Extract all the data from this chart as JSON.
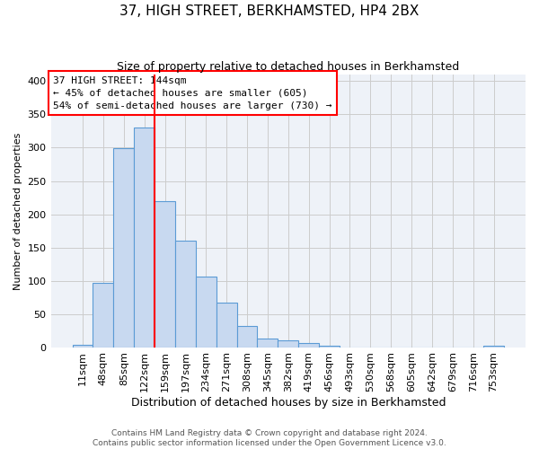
{
  "title": "37, HIGH STREET, BERKHAMSTED, HP4 2BX",
  "subtitle": "Size of property relative to detached houses in Berkhamsted",
  "xlabel": "Distribution of detached houses by size in Berkhamsted",
  "ylabel": "Number of detached properties",
  "footer_line1": "Contains HM Land Registry data © Crown copyright and database right 2024.",
  "footer_line2": "Contains public sector information licensed under the Open Government Licence v3.0.",
  "bar_labels": [
    "11sqm",
    "48sqm",
    "85sqm",
    "122sqm",
    "159sqm",
    "197sqm",
    "234sqm",
    "271sqm",
    "308sqm",
    "345sqm",
    "382sqm",
    "419sqm",
    "456sqm",
    "493sqm",
    "530sqm",
    "568sqm",
    "605sqm",
    "642sqm",
    "679sqm",
    "716sqm",
    "753sqm"
  ],
  "bar_values": [
    4,
    97,
    299,
    330,
    220,
    160,
    106,
    67,
    32,
    13,
    10,
    6,
    2,
    0,
    0,
    0,
    0,
    0,
    0,
    0,
    2
  ],
  "bar_color": "#c8d9f0",
  "bar_edge_color": "#5b9bd5",
  "vline_position": 3.5,
  "vline_color": "red",
  "annotation_line1": "37 HIGH STREET: 144sqm",
  "annotation_line2": "← 45% of detached houses are smaller (605)",
  "annotation_line3": "54% of semi-detached houses are larger (730) →",
  "annotation_box_facecolor": "white",
  "annotation_box_edgecolor": "red",
  "ylim": [
    0,
    410
  ],
  "yticks": [
    0,
    50,
    100,
    150,
    200,
    250,
    300,
    350,
    400
  ],
  "grid_color": "#cccccc",
  "background_color": "#eef2f8",
  "fig_background": "white",
  "title_fontsize": 11,
  "subtitle_fontsize": 9,
  "xlabel_fontsize": 9,
  "ylabel_fontsize": 8,
  "tick_fontsize": 8,
  "annot_fontsize": 8,
  "footer_fontsize": 6.5
}
